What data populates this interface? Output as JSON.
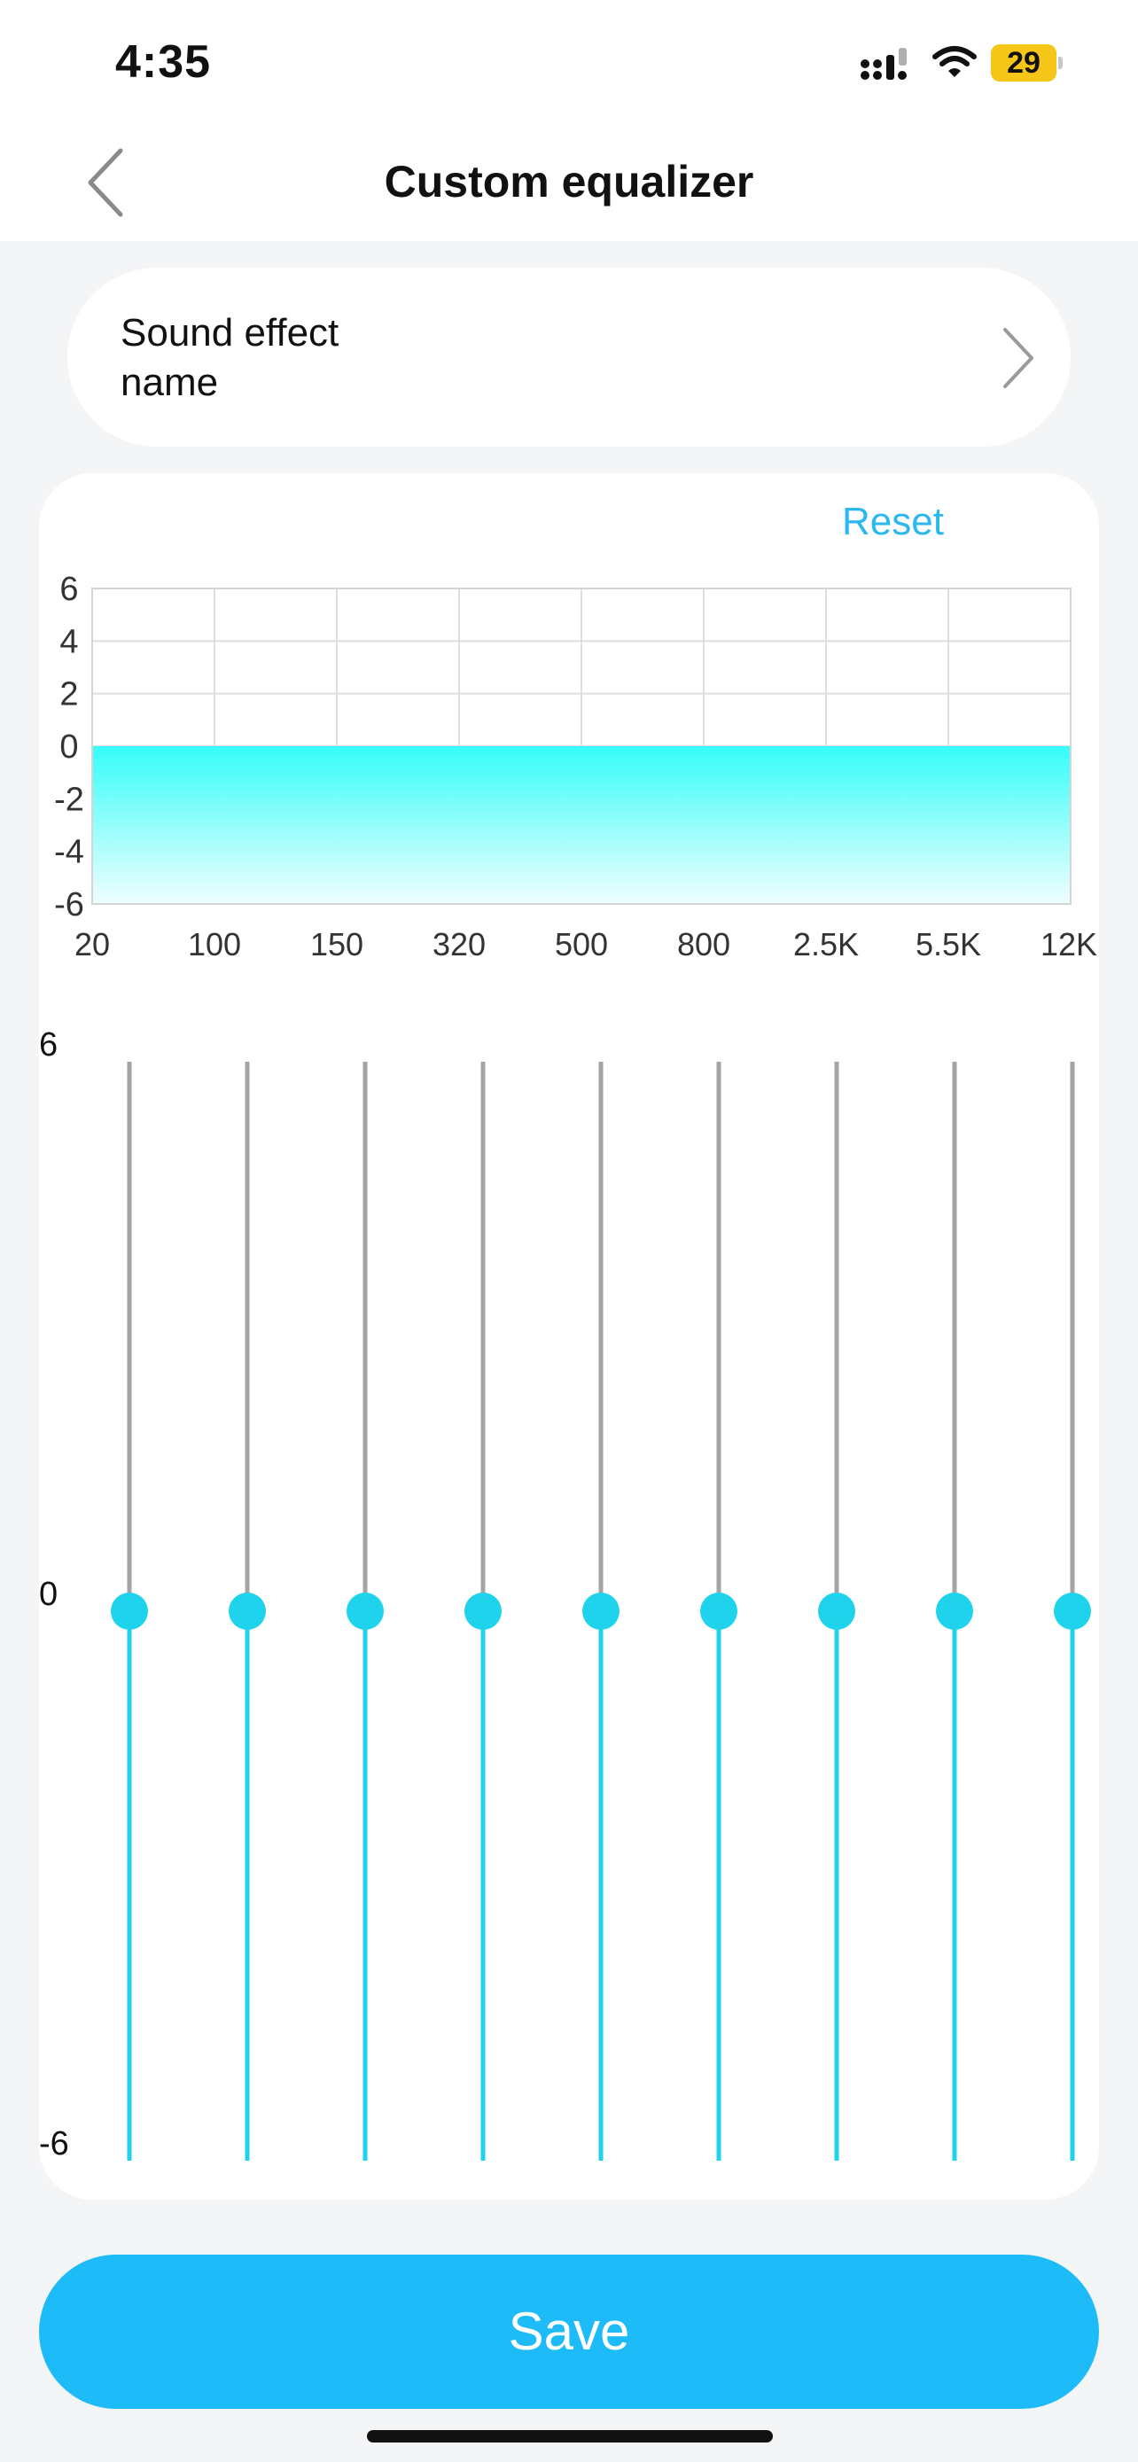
{
  "status_bar": {
    "time": "4:35",
    "battery_level": "29",
    "icons": [
      "signal-icon",
      "wifi-icon",
      "battery-icon"
    ],
    "battery_color": "#f5c518"
  },
  "nav": {
    "title": "Custom equalizer",
    "back_icon": "chevron-left-icon"
  },
  "sound_effect": {
    "label": "Sound effect name",
    "chevron_icon": "chevron-right-icon"
  },
  "equalizer": {
    "reset_label": "Reset",
    "graph_y_ticks": [
      "6",
      "4",
      "2",
      "0",
      "-2",
      "-4",
      "-6"
    ],
    "bands": [
      "20",
      "100",
      "150",
      "320",
      "500",
      "800",
      "2.5K",
      "5.5K",
      "12K"
    ],
    "gains": [
      0,
      0,
      0,
      0,
      0,
      0,
      0,
      0,
      0
    ],
    "gain_range": [
      -6,
      6
    ],
    "slider_scale": {
      "max": "6",
      "mid": "0",
      "min": "-6"
    },
    "accent_color": "#1fd3ec",
    "fill_color": "#3dfcf9"
  },
  "save_label": "Save",
  "colors": {
    "background": "#f4f5f7",
    "card": "#ffffff",
    "primary": "#1ebbf9",
    "link": "#2bb8ee"
  }
}
